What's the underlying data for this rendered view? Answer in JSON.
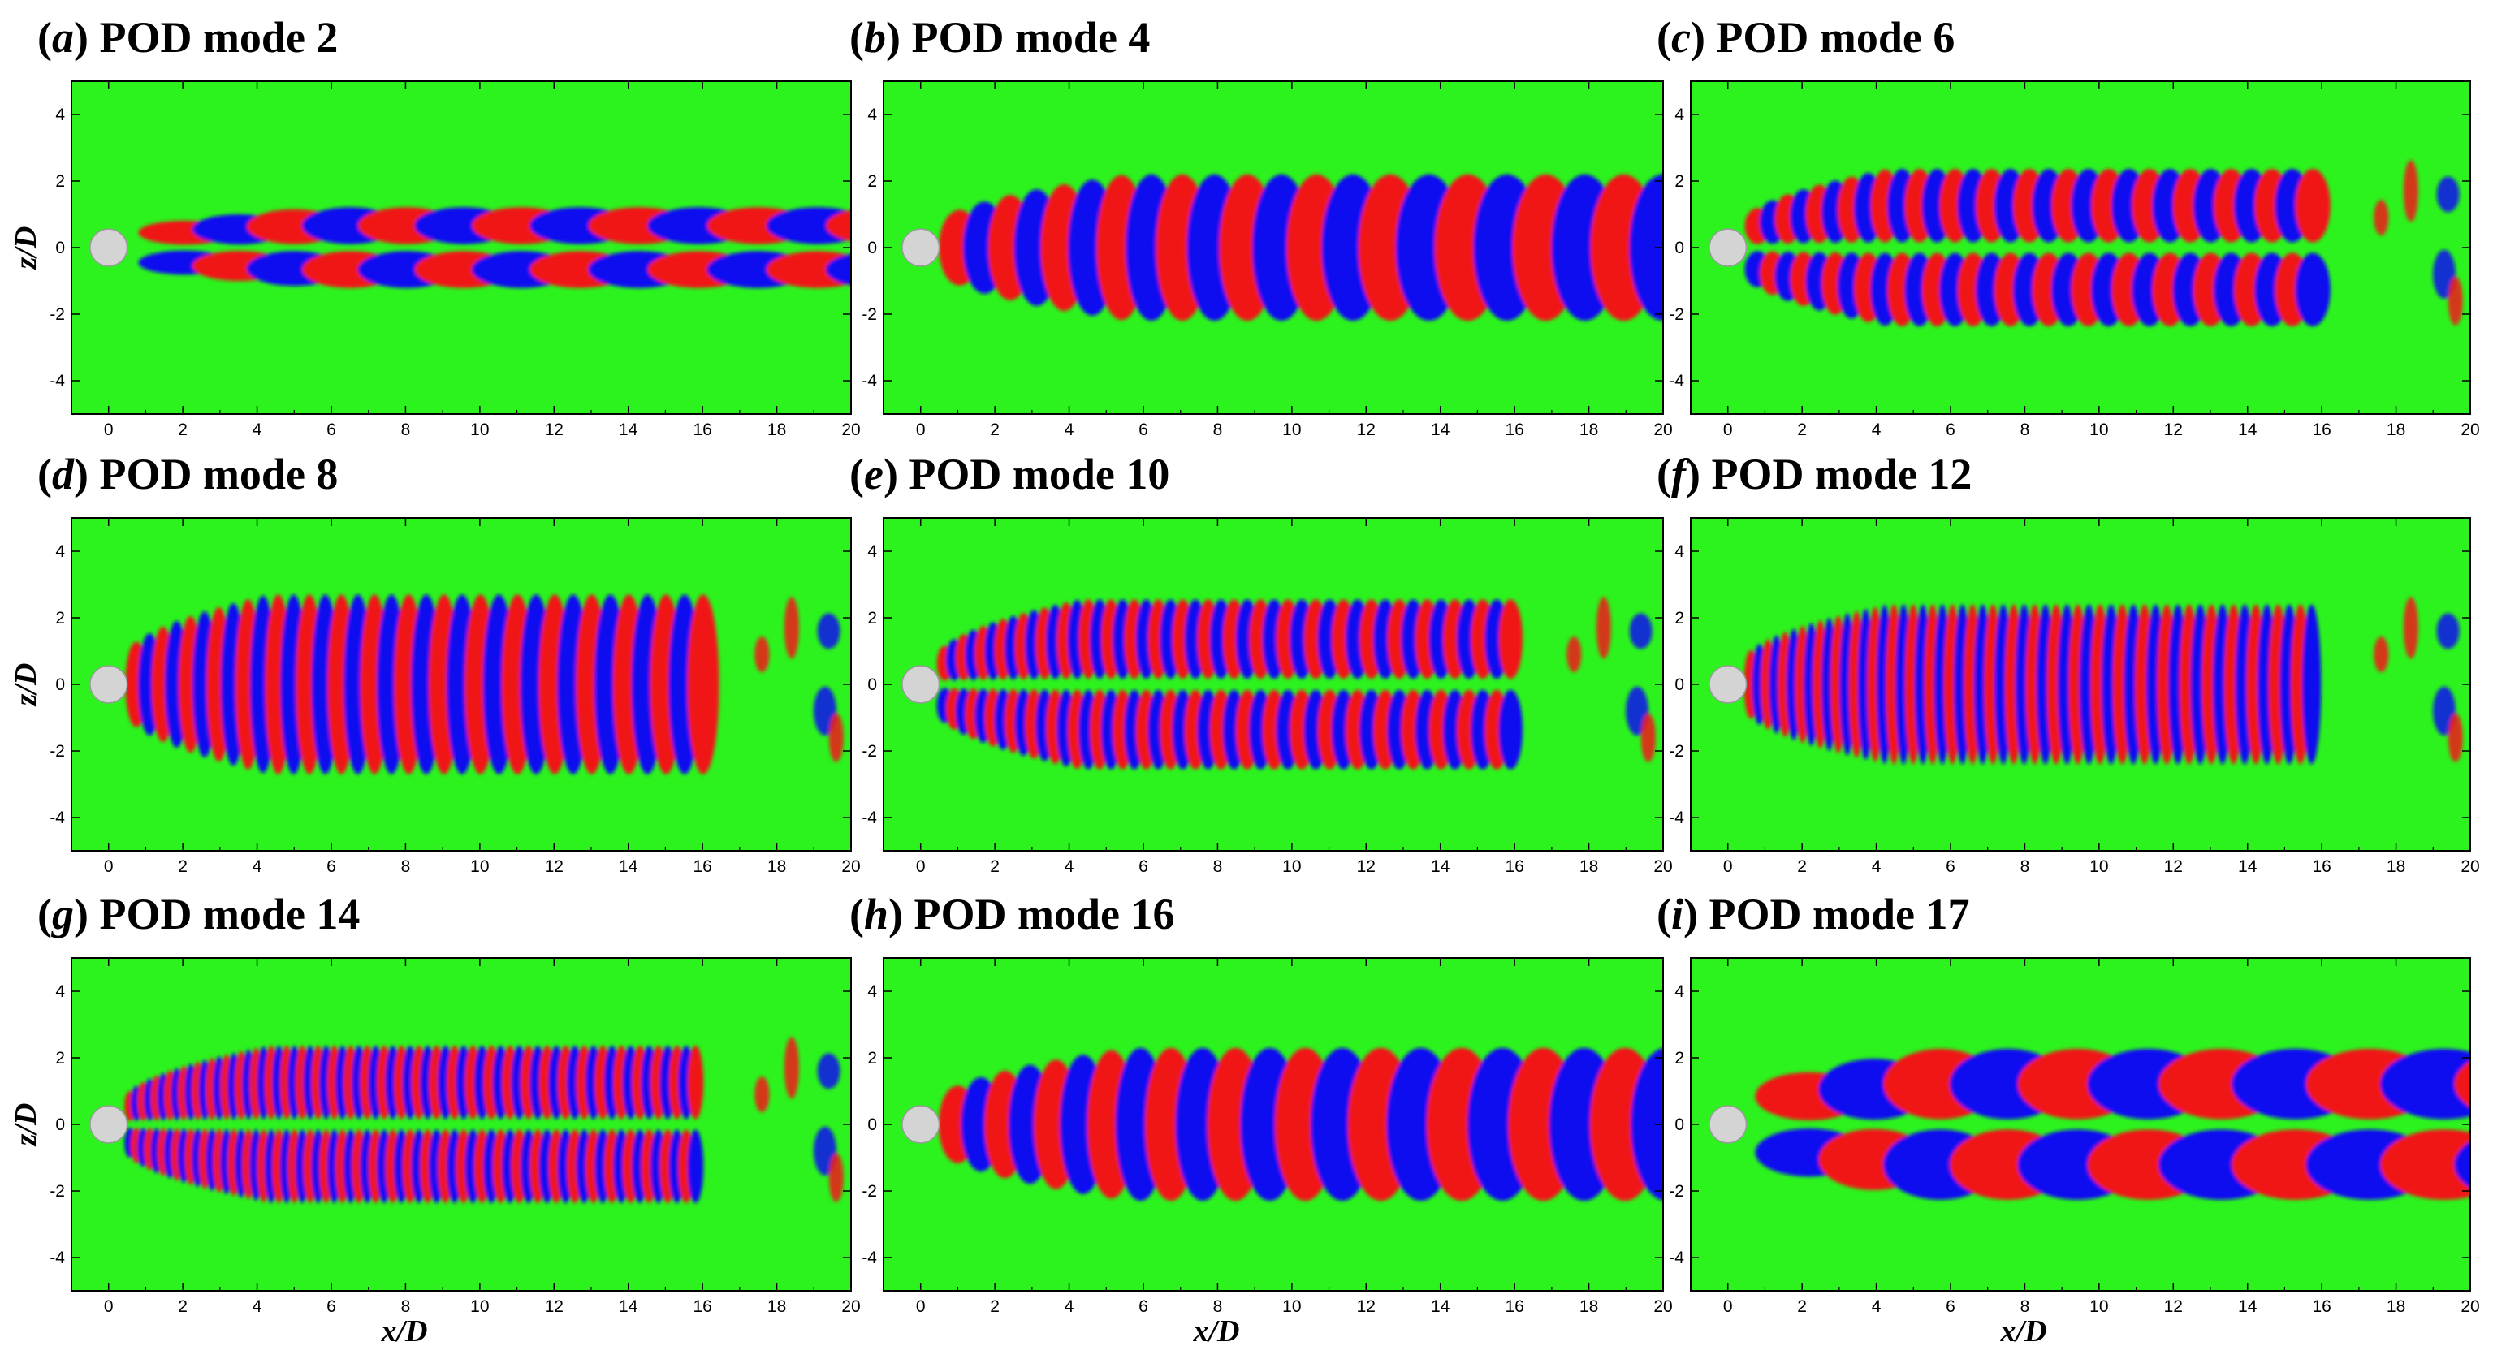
{
  "chart_data": {
    "type": "heatmap",
    "description_units": "x/D streamwise, z/D spanwise; colors: red positive, blue negative, green zero",
    "colors": {
      "background": "#2cf21e",
      "positive": "#f01616",
      "negative": "#1010f0",
      "cylinder": "#d4d4d4"
    },
    "shared_axes": {
      "xlabel": "x/D",
      "ylabel": "z/D",
      "xlim": [
        -1,
        20
      ],
      "ylim": [
        -5,
        5
      ],
      "xticks": [
        "0",
        "2",
        "4",
        "6",
        "8",
        "10",
        "12",
        "14",
        "16",
        "18",
        "20"
      ],
      "yticks": [
        "4",
        "2",
        "0",
        "-2",
        "-4"
      ]
    },
    "panels": [
      {
        "label": "a",
        "title": "POD mode 2",
        "mode": 2,
        "structure": "antisymmetric",
        "start": 0.6,
        "end": 20.5,
        "halfwidth": 1.2,
        "wl0": 2.9,
        "wl1": 3.2,
        "k_decay": 0.0,
        "fade": 20
      },
      {
        "label": "b",
        "title": "POD mode 4",
        "mode": 4,
        "structure": "symmetric",
        "start": 0.4,
        "end": 20.5,
        "halfwidth": 2.2,
        "wl0": 1.3,
        "wl1": 2.1,
        "k_decay": 0.0,
        "fade": 20
      },
      {
        "label": "c",
        "title": "POD mode 6",
        "mode": 6,
        "structure": "antisymmetric",
        "start": 0.4,
        "end": 15.7,
        "halfwidth": 2.4,
        "wl0": 0.8,
        "wl1": 1.1,
        "k_decay": 0.0,
        "fade": 16
      },
      {
        "label": "d",
        "title": "POD mode 8",
        "mode": 8,
        "structure": "symmetric",
        "start": 0.4,
        "end": 15.6,
        "halfwidth": 2.7,
        "wl0": 0.7,
        "wl1": 1.0,
        "k_decay": 0.0,
        "fade": 16
      },
      {
        "label": "e",
        "title": "POD mode 10",
        "mode": 10,
        "structure": "antisymmetric",
        "start": 0.4,
        "end": 15.6,
        "halfwidth": 2.6,
        "wl0": 0.5,
        "wl1": 0.75,
        "k_decay": 0.0,
        "fade": 16
      },
      {
        "label": "f",
        "title": "POD mode 12",
        "mode": 12,
        "structure": "symmetric",
        "start": 0.4,
        "end": 15.6,
        "halfwidth": 2.4,
        "wl0": 0.45,
        "wl1": 0.6,
        "k_decay": 0.0,
        "fade": 16
      },
      {
        "label": "g",
        "title": "POD mode 14",
        "mode": 14,
        "structure": "antisymmetric",
        "start": 0.4,
        "end": 15.6,
        "halfwidth": 2.4,
        "wl0": 0.35,
        "wl1": 0.5,
        "k_decay": 0.0,
        "fade": 16
      },
      {
        "label": "h",
        "title": "POD mode 16",
        "mode": 16,
        "structure": "symmetric",
        "start": 0.4,
        "end": 20.5,
        "halfwidth": 2.3,
        "wl0": 1.2,
        "wl1": 2.2,
        "k_decay": 0.0,
        "fade": 20
      },
      {
        "label": "i",
        "title": "POD mode 17",
        "mode": 17,
        "structure": "antisymmetric",
        "start": 0.5,
        "end": 20.5,
        "halfwidth": 2.3,
        "wl0": 3.4,
        "wl1": 4.0,
        "k_decay": 0.0,
        "fade": 20
      }
    ]
  }
}
